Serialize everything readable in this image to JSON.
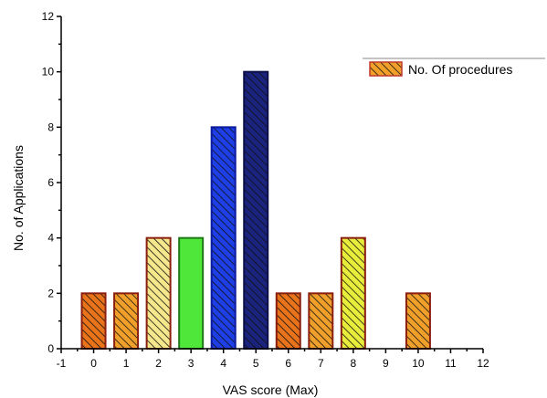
{
  "chart_data": {
    "type": "bar",
    "xlabel": "VAS score (Max)",
    "ylabel": "No. of Applications",
    "xlim": [
      -1,
      12
    ],
    "ylim": [
      0,
      12
    ],
    "x_ticks": [
      "-1",
      "0",
      "1",
      "2",
      "3",
      "4",
      "5",
      "6",
      "7",
      "8",
      "9",
      "10",
      "11",
      "12"
    ],
    "y_ticks": [
      "0",
      "2",
      "4",
      "6",
      "8",
      "10",
      "12"
    ],
    "grid": false,
    "legend": {
      "position": "top-right",
      "entries": [
        "No. Of procedures"
      ]
    },
    "series": [
      {
        "name": "No. Of procedures",
        "points": [
          {
            "x": 0,
            "y": 2,
            "color": "#e8731a",
            "hatched": true
          },
          {
            "x": 1,
            "y": 2,
            "color": "#f0a02a",
            "hatched": true
          },
          {
            "x": 2,
            "y": 4,
            "color": "#f4e78c",
            "hatched": true
          },
          {
            "x": 3,
            "y": 4,
            "color": "#4fe83a",
            "hatched": false
          },
          {
            "x": 4,
            "y": 8,
            "color": "#1f3fe6",
            "hatched": true
          },
          {
            "x": 5,
            "y": 10,
            "color": "#1a237e",
            "hatched": true
          },
          {
            "x": 6,
            "y": 2,
            "color": "#e8731a",
            "hatched": true
          },
          {
            "x": 7,
            "y": 2,
            "color": "#f0a02a",
            "hatched": true
          },
          {
            "x": 8,
            "y": 4,
            "color": "#e8ec3a",
            "hatched": true
          },
          {
            "x": 10,
            "y": 2,
            "color": "#f0a02a",
            "hatched": true
          }
        ]
      }
    ],
    "legend_swatch_color": "#f0a02a"
  }
}
